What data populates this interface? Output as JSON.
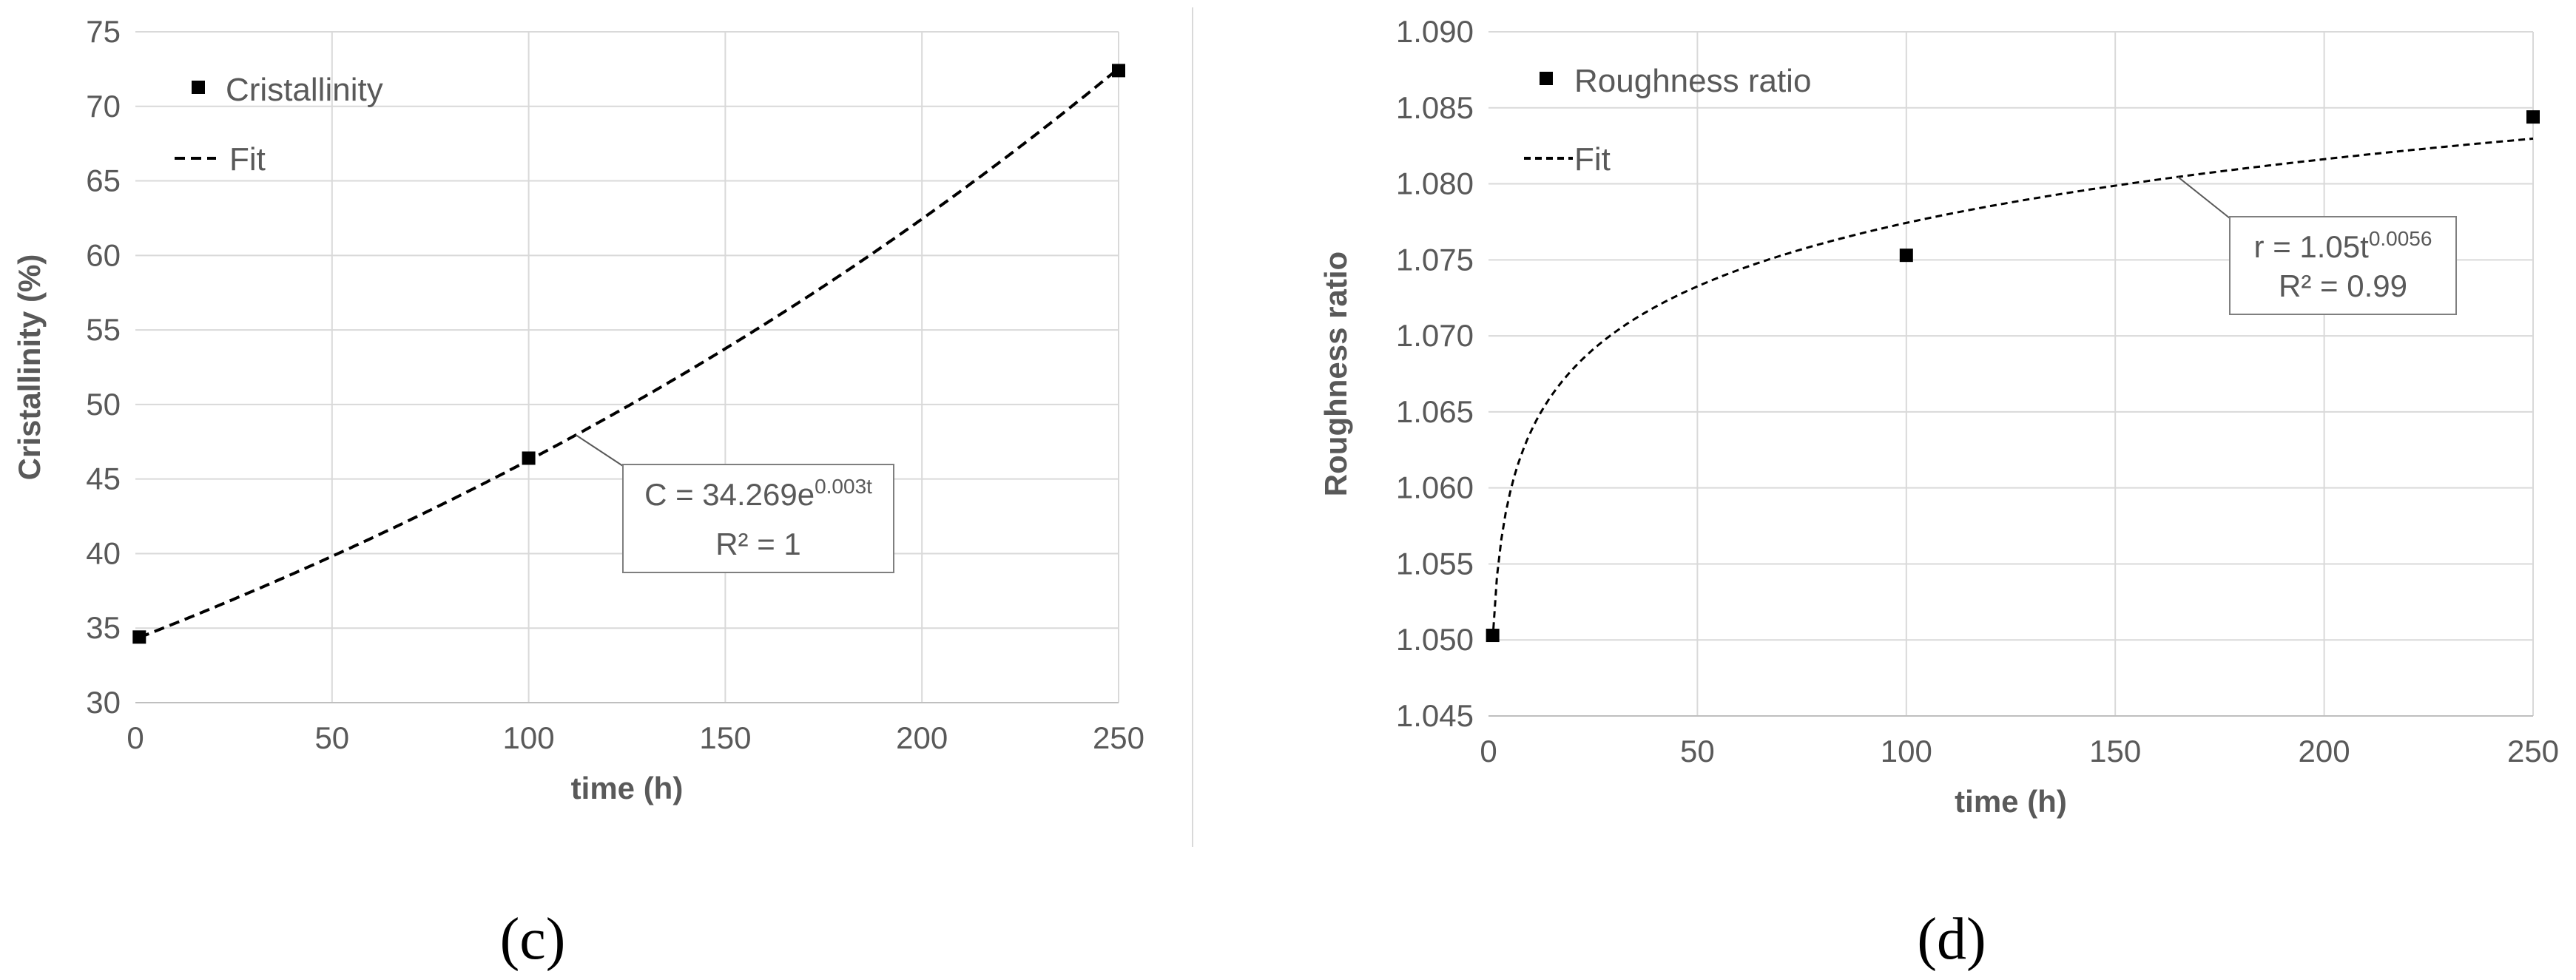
{
  "chart_data": [
    {
      "type": "scatter",
      "panel_label": "(c)",
      "xlabel": "time (h)",
      "ylabel": "Cristallinity (%)",
      "xlim": [
        0,
        250
      ],
      "ylim": [
        30,
        75
      ],
      "xticks": [
        "0",
        "50",
        "100",
        "150",
        "200",
        "250"
      ],
      "yticks": [
        "30",
        "35",
        "40",
        "45",
        "50",
        "55",
        "60",
        "65",
        "70",
        "75"
      ],
      "grid": true,
      "legend_position": "top-left",
      "series": [
        {
          "name": "Cristallinity",
          "kind": "markers",
          "x": [
            1,
            100,
            250
          ],
          "y": [
            34.4,
            46.4,
            72.4
          ]
        },
        {
          "name": "Fit",
          "kind": "dashed-line",
          "model": "exp",
          "a": 34.269,
          "b": 0.003
        }
      ],
      "annotation": {
        "line1": "C = 34.269e",
        "line1_sup": "0.003t",
        "line2": "R² = 1"
      },
      "colors": {
        "data": "#000000",
        "grid": "#d9d9d9",
        "text": "#595959"
      }
    },
    {
      "type": "scatter",
      "panel_label": "(d)",
      "xlabel": "time (h)",
      "ylabel": "Roughness ratio",
      "xlim": [
        0,
        250
      ],
      "ylim": [
        1.045,
        1.09
      ],
      "xticks": [
        "0",
        "50",
        "100",
        "150",
        "200",
        "250"
      ],
      "yticks": [
        "1.045",
        "1.050",
        "1.055",
        "1.060",
        "1.065",
        "1.070",
        "1.075",
        "1.080",
        "1.085",
        "1.090"
      ],
      "grid": true,
      "legend_position": "top-left",
      "series": [
        {
          "name": "Roughness ratio",
          "kind": "markers",
          "x": [
            1,
            100,
            250
          ],
          "y": [
            1.0503,
            1.0753,
            1.0844
          ]
        },
        {
          "name": "Fit",
          "kind": "dashed-line",
          "model": "power",
          "a": 1.05,
          "b": 0.0056
        }
      ],
      "annotation": {
        "line1": "r = 1.05t",
        "line1_sup": "0.0056",
        "line2": "R² = 0.99"
      },
      "colors": {
        "data": "#000000",
        "grid": "#d9d9d9",
        "text": "#595959"
      }
    }
  ]
}
